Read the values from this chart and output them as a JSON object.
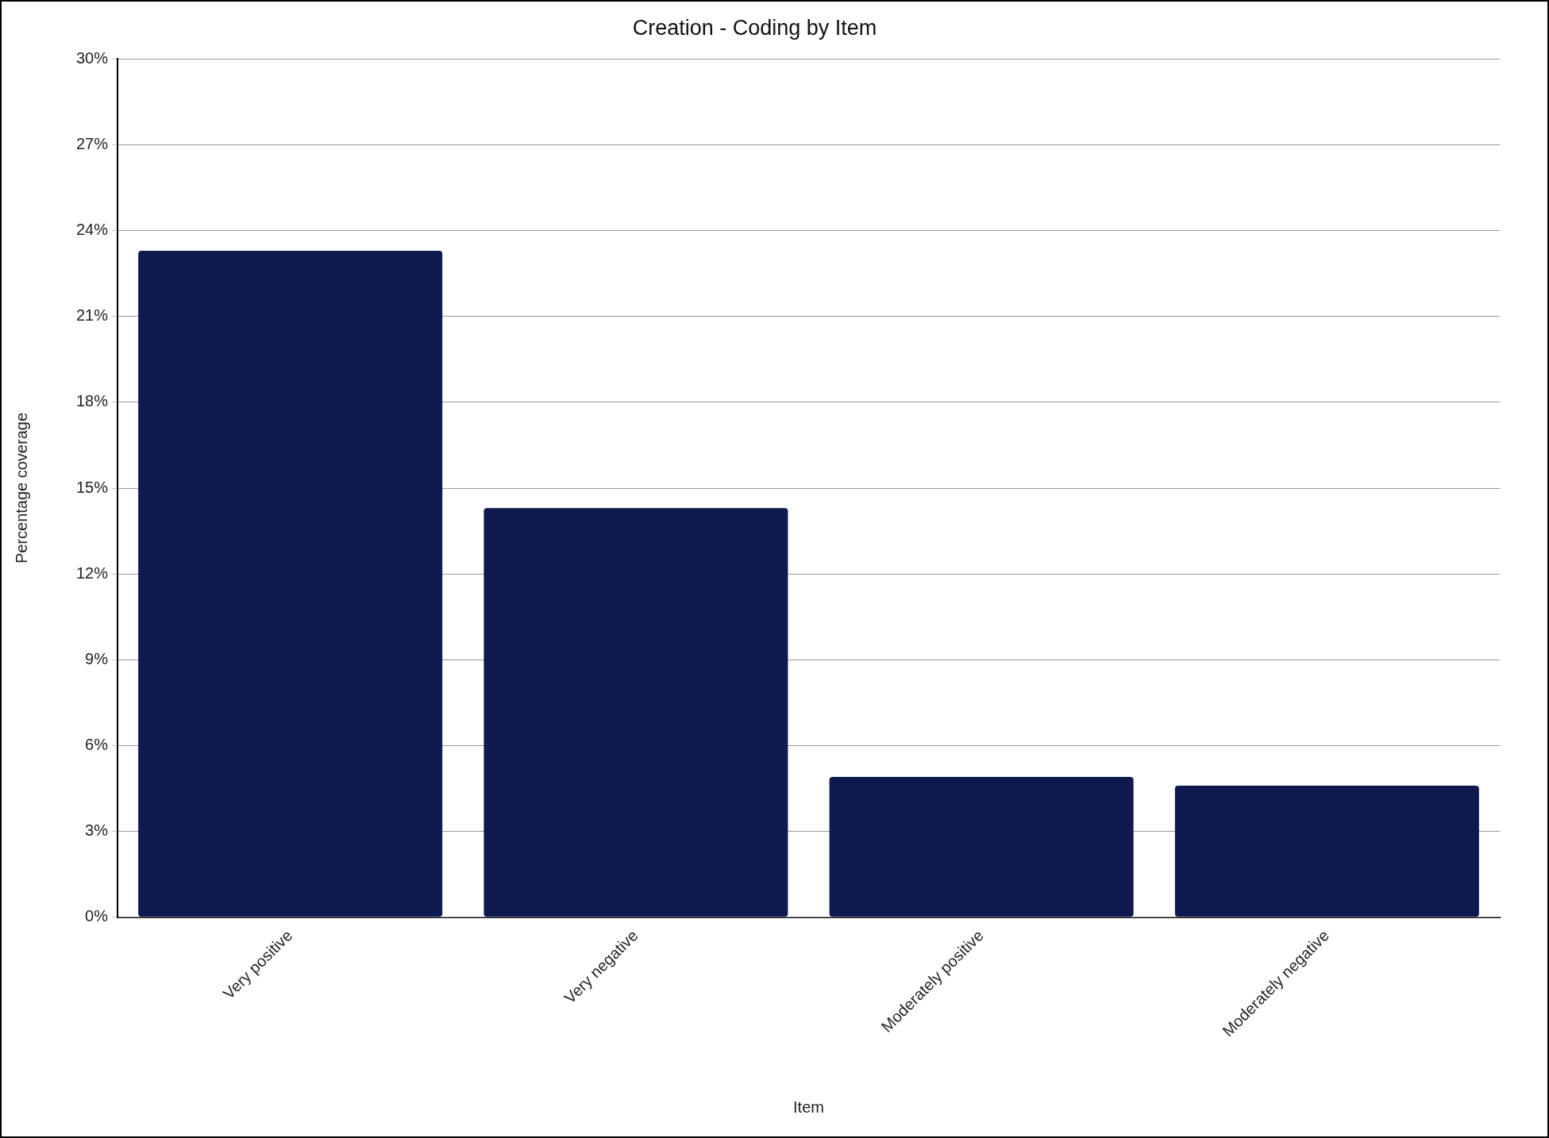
{
  "chart_data": {
    "type": "bar",
    "title": "Creation - Coding by Item",
    "xlabel": "Item",
    "ylabel": "Percentage coverage",
    "categories": [
      "Very positive",
      "Very negative",
      "Moderately positive",
      "Moderately negative"
    ],
    "values": [
      23.3,
      14.3,
      4.9,
      4.6
    ],
    "color": "#0e1a4e",
    "ylim": [
      0,
      30
    ],
    "yticks": [
      {
        "value": 0,
        "label": "0%"
      },
      {
        "value": 3,
        "label": "3%"
      },
      {
        "value": 6,
        "label": "6%"
      },
      {
        "value": 9,
        "label": "9%"
      },
      {
        "value": 12,
        "label": "12%"
      },
      {
        "value": 15,
        "label": "15%"
      },
      {
        "value": 18,
        "label": "18%"
      },
      {
        "value": 21,
        "label": "21%"
      },
      {
        "value": 24,
        "label": "24%"
      },
      {
        "value": 27,
        "label": "27%"
      },
      {
        "value": 30,
        "label": "30%"
      }
    ],
    "grid": "y"
  }
}
